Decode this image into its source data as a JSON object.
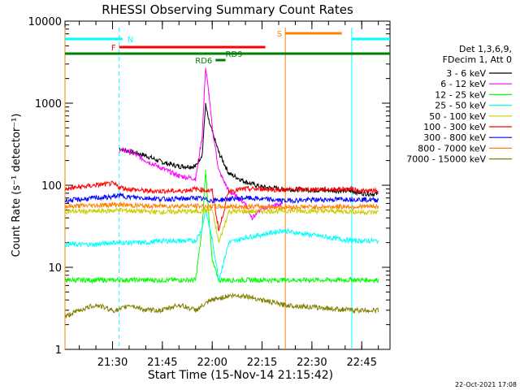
{
  "chart_data": {
    "type": "line",
    "title": "RHESSI Observing Summary Count Rates",
    "xlabel": "Start Time (15-Nov-14 21:15:42)",
    "ylabel": "Count Rate (s⁻¹ detector⁻¹)",
    "yscale": "log",
    "ylim": [
      1,
      10000
    ],
    "x_unit": "UT (hh:mm) on 15-Nov-14",
    "xlim": [
      "21:15:42",
      "22:53:30"
    ],
    "x_ticks": [
      "21:30",
      "21:45",
      "22:00",
      "22:15",
      "22:30",
      "22:45"
    ],
    "y_ticks": [
      "1",
      "10",
      "100",
      "1000",
      "10000"
    ],
    "footer": "22-Oct-2021 17:08",
    "legend": {
      "placement": "right",
      "header": [
        "Det 1,3,6,9,",
        "FDecim 1, Att 0"
      ]
    },
    "data_gaps": [
      {
        "start": "21:15:42",
        "end": "21:32:00"
      },
      {
        "start": "22:22:00",
        "end": "22:42:00"
      }
    ],
    "series": [
      {
        "name": "3 - 6 keV",
        "color": "#000000",
        "x": [
          "21:32",
          "21:35",
          "21:40",
          "21:45",
          "21:50",
          "21:55",
          "21:57",
          "21:58",
          "21:59",
          "22:00",
          "22:02",
          "22:05",
          "22:10",
          "22:15",
          "22:21",
          "22:42",
          "22:45",
          "22:50"
        ],
        "y": [
          280,
          260,
          230,
          190,
          170,
          170,
          240,
          950,
          600,
          450,
          250,
          140,
          110,
          95,
          90,
          85,
          80,
          78
        ]
      },
      {
        "name": "6 - 12 keV",
        "color": "#ff00ff",
        "x": [
          "21:32",
          "21:35",
          "21:40",
          "21:45",
          "21:50",
          "21:55",
          "21:57",
          "21:58",
          "21:59",
          "22:00",
          "22:02",
          "22:05",
          "22:10",
          "22:12",
          "22:15",
          "22:21"
        ],
        "y": [
          270,
          260,
          200,
          160,
          130,
          120,
          400,
          2700,
          1300,
          500,
          150,
          85,
          60,
          40,
          52,
          60
        ]
      },
      {
        "name": "12 - 25 keV",
        "color": "#00ff00",
        "x": [
          "21:15:42",
          "21:20",
          "21:25",
          "21:30",
          "21:32",
          "21:35",
          "21:40",
          "21:45",
          "21:50",
          "21:55",
          "21:57",
          "21:58",
          "22:00",
          "22:02",
          "22:05",
          "22:10",
          "22:15",
          "22:21",
          "22:42",
          "22:45",
          "22:50"
        ],
        "y": [
          7,
          7,
          7,
          7,
          7,
          7,
          7,
          7,
          7,
          7,
          30,
          150,
          12,
          7,
          7,
          7,
          7,
          7,
          7,
          7,
          7
        ]
      },
      {
        "name": "25 - 50 keV",
        "color": "#00ffff",
        "x": [
          "21:15:42",
          "21:20",
          "21:25",
          "21:30",
          "21:32",
          "21:35",
          "21:40",
          "21:45",
          "21:50",
          "21:55",
          "21:57",
          "21:58",
          "22:00",
          "22:02",
          "22:05",
          "22:10",
          "22:15",
          "22:21",
          "22:42",
          "22:45",
          "22:50"
        ],
        "y": [
          19,
          19,
          19,
          20,
          20,
          20,
          20,
          21,
          21,
          21,
          30,
          50,
          22,
          7,
          20,
          23,
          25,
          28,
          21,
          21,
          21
        ]
      },
      {
        "name": "50 - 100 keV",
        "color": "#cccc00",
        "x": [
          "21:15:42",
          "21:20",
          "21:25",
          "21:30",
          "21:32",
          "21:35",
          "21:40",
          "21:45",
          "21:50",
          "21:55",
          "22:00",
          "22:02",
          "22:05",
          "22:10",
          "22:15",
          "22:21",
          "22:42",
          "22:45",
          "22:50"
        ],
        "y": [
          48,
          48,
          48,
          49,
          50,
          49,
          48,
          47,
          48,
          48,
          50,
          20,
          48,
          48,
          48,
          49,
          48,
          47,
          47
        ]
      },
      {
        "name": "100 - 300 keV",
        "color": "#ff0000",
        "x": [
          "21:15:42",
          "21:20",
          "21:25",
          "21:30",
          "21:32",
          "21:35",
          "21:40",
          "21:45",
          "21:50",
          "21:55",
          "22:00",
          "22:02",
          "22:05",
          "22:10",
          "22:15",
          "22:21",
          "22:42",
          "22:45",
          "22:50"
        ],
        "y": [
          90,
          95,
          100,
          105,
          95,
          90,
          85,
          85,
          85,
          90,
          85,
          28,
          85,
          90,
          90,
          88,
          90,
          85,
          85
        ]
      },
      {
        "name": "300 - 800 keV",
        "color": "#0000ff",
        "x": [
          "21:15:42",
          "21:20",
          "21:25",
          "21:30",
          "21:32",
          "21:35",
          "21:40",
          "21:45",
          "21:50",
          "21:55",
          "22:00",
          "22:05",
          "22:10",
          "22:15",
          "22:21",
          "22:42",
          "22:45",
          "22:50"
        ],
        "y": [
          65,
          67,
          70,
          72,
          75,
          72,
          70,
          68,
          68,
          70,
          65,
          68,
          70,
          68,
          65,
          68,
          67,
          66
        ]
      },
      {
        "name": "800 - 7000 keV",
        "color": "#ff8000",
        "x": [
          "21:15:42",
          "21:20",
          "21:25",
          "21:30",
          "21:32",
          "21:35",
          "21:40",
          "21:45",
          "21:50",
          "21:55",
          "22:00",
          "22:05",
          "22:10",
          "22:15",
          "22:21",
          "22:42",
          "22:45",
          "22:50"
        ],
        "y": [
          55,
          56,
          57,
          58,
          58,
          57,
          56,
          56,
          56,
          56,
          55,
          55,
          55,
          55,
          54,
          55,
          55,
          55
        ]
      },
      {
        "name": "7000 - 15000 keV",
        "color": "#808000",
        "x": [
          "21:15:42",
          "21:20",
          "21:25",
          "21:30",
          "21:32",
          "21:35",
          "21:40",
          "21:45",
          "21:50",
          "21:55",
          "22:00",
          "22:05",
          "22:10",
          "22:15",
          "22:21",
          "22:42",
          "22:45",
          "22:50"
        ],
        "y": [
          2.5,
          3,
          3.5,
          3,
          3,
          3.5,
          3,
          3,
          3.5,
          3,
          4,
          4.5,
          4.5,
          4,
          3.5,
          3,
          3,
          3
        ]
      }
    ],
    "flag_bars": [
      {
        "label": "N",
        "color": "#00ffff",
        "segments": [
          {
            "start": "21:15:42",
            "end": "21:33:00"
          },
          {
            "start": "22:42:00",
            "end": "22:53:30"
          }
        ]
      },
      {
        "label": "S",
        "color": "#ff8000",
        "segments": [
          {
            "start": "22:22:00",
            "end": "22:39:00"
          }
        ]
      },
      {
        "label": "F",
        "color": "#ff0000",
        "segments": [
          {
            "start": "21:32:00",
            "end": "22:16:00"
          }
        ]
      },
      {
        "label": "RD9",
        "color": "#008000",
        "segments": [
          {
            "start": "21:15:42",
            "end": "22:53:30"
          }
        ]
      },
      {
        "label": "RD6",
        "color": "#008000",
        "segments": [
          {
            "start": "22:01:00",
            "end": "22:04:00"
          }
        ]
      }
    ]
  }
}
